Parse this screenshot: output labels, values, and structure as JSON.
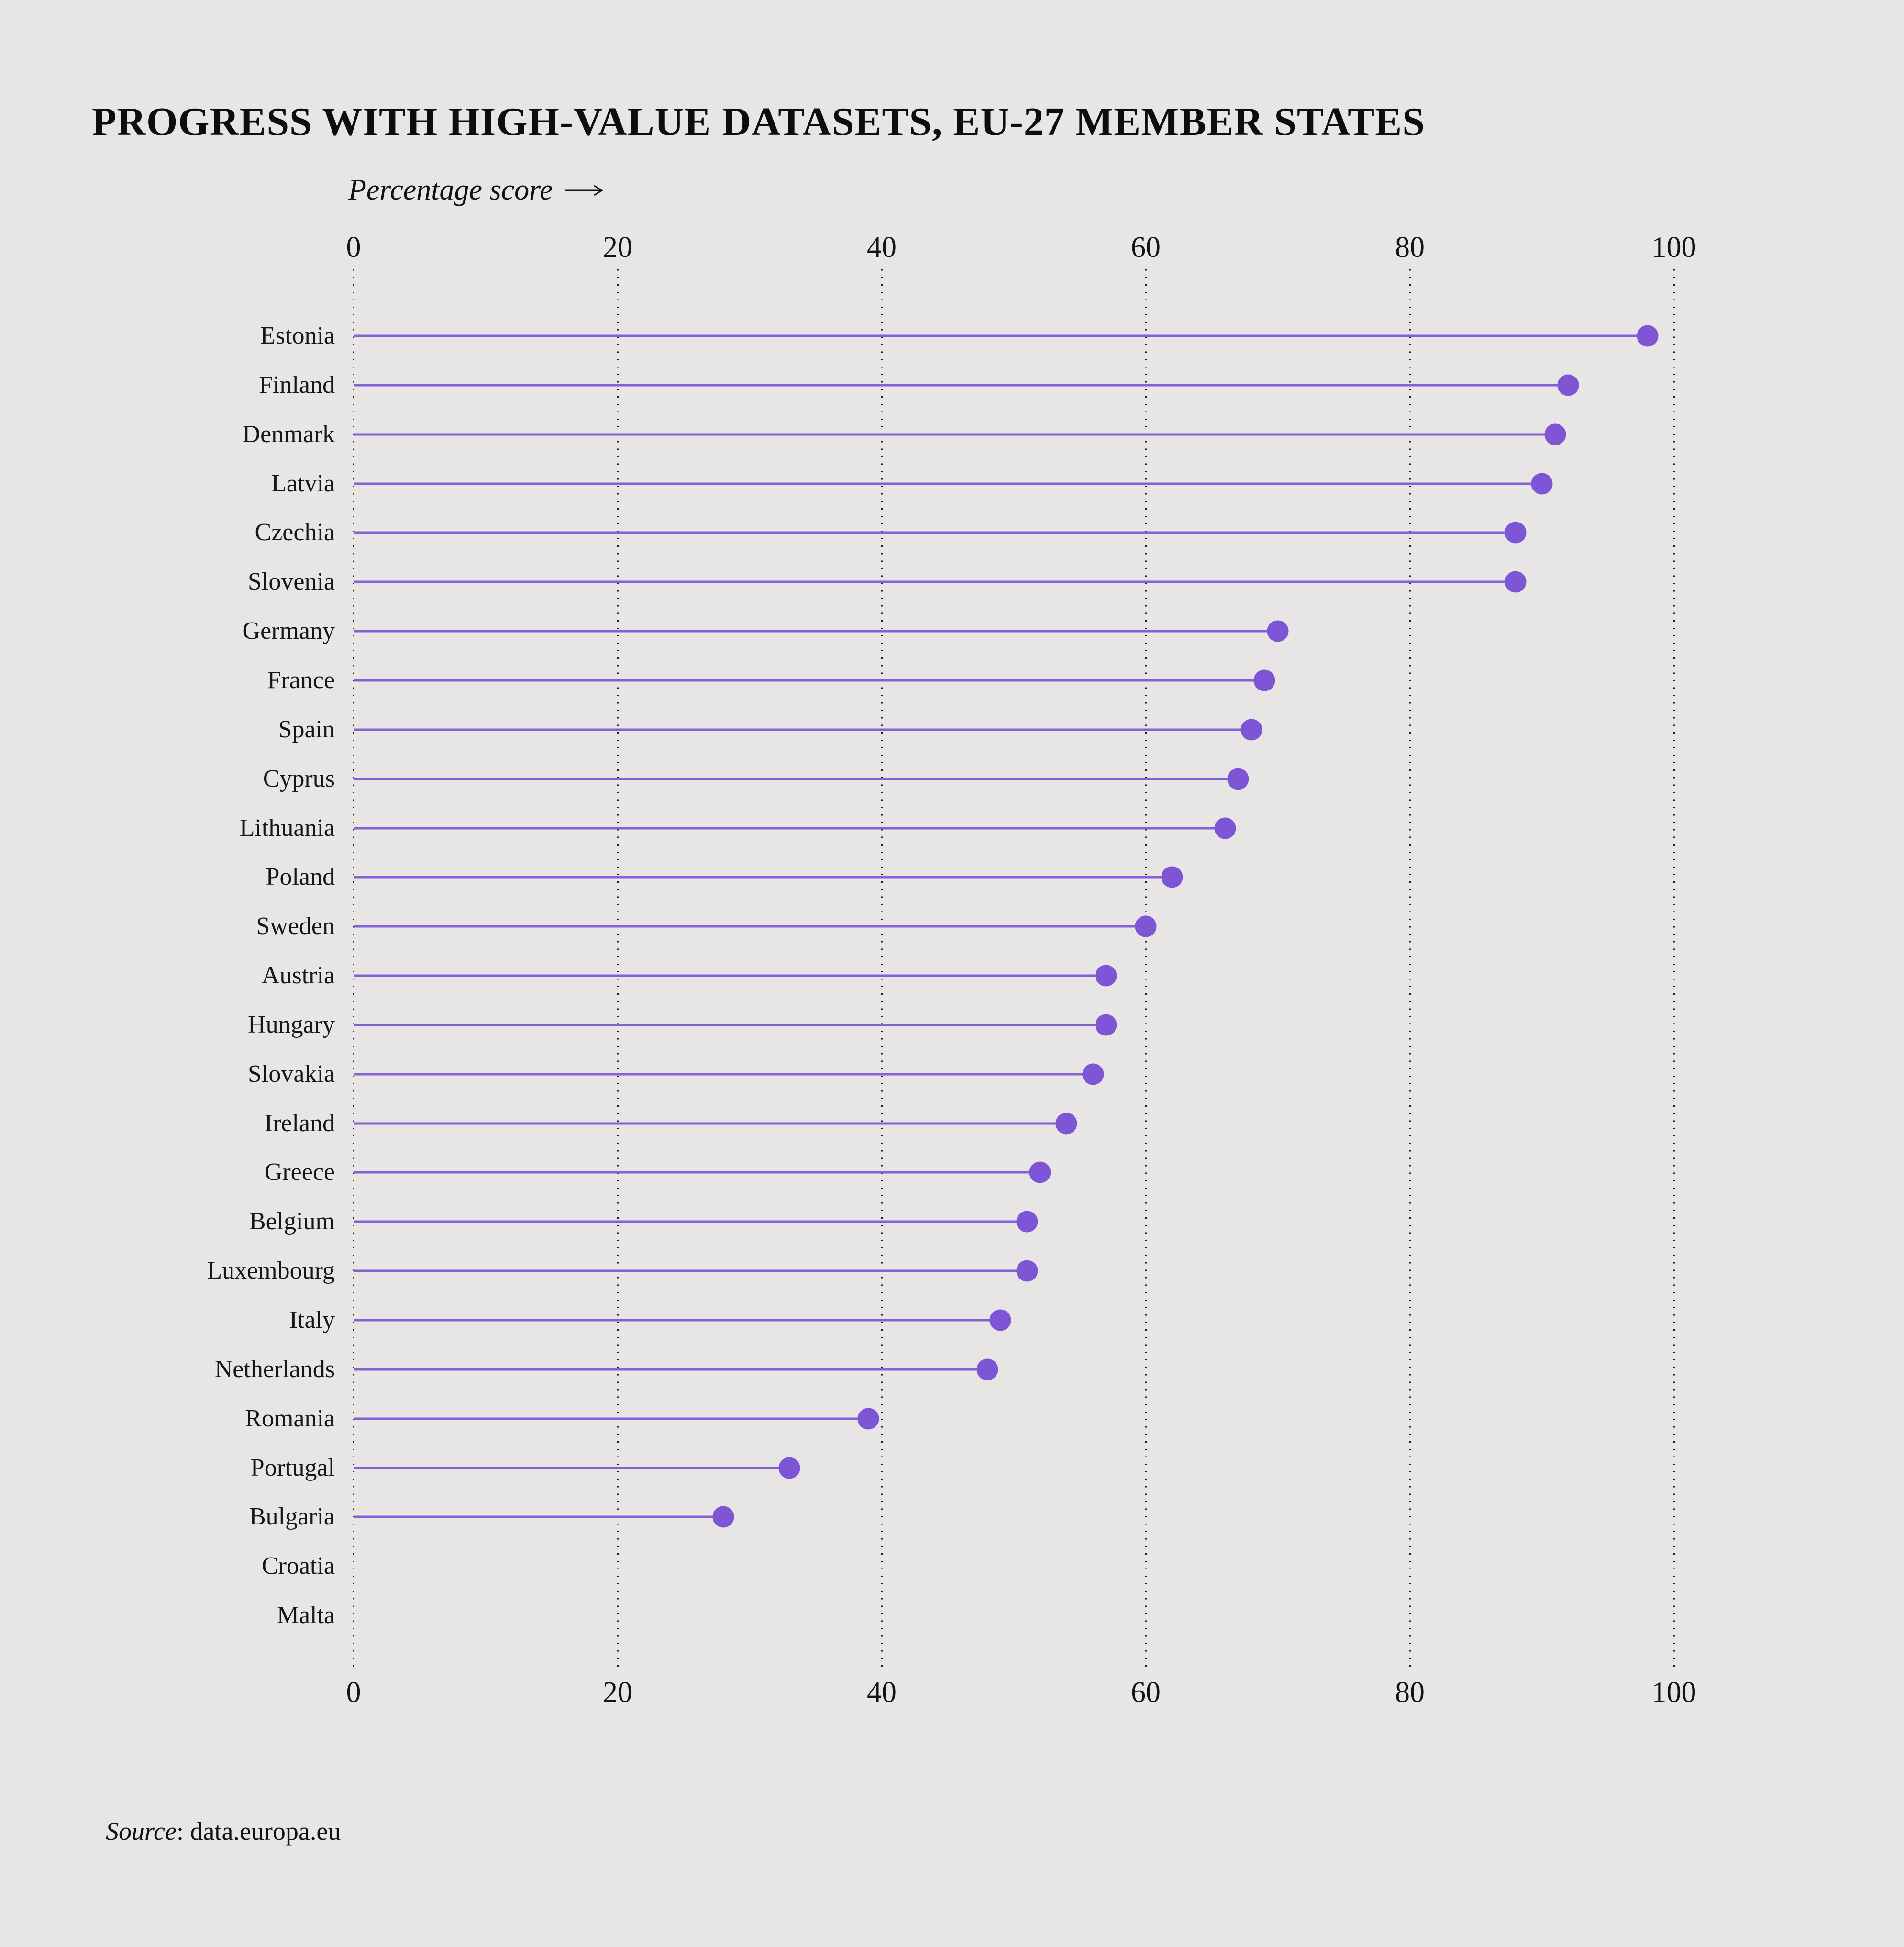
{
  "title": "PROGRESS WITH HIGH-VALUE DATASETS, EU-27 MEMBER STATES",
  "axis_label": "Percentage score",
  "source": {
    "label": "Source",
    "separator": ": ",
    "value": "data.europa.eu"
  },
  "colors": {
    "background": "#e7e6e5",
    "dot": "#7d55d5",
    "stem": "#8460d6",
    "gridline": "#1f1f1f",
    "text": "#141414"
  },
  "chart_data": {
    "type": "scatter",
    "variant": "lollipop-horizontal",
    "title": "PROGRESS WITH HIGH-VALUE DATASETS, EU-27 MEMBER STATES",
    "xlabel": "Percentage score",
    "ylabel": "",
    "xlim": [
      0,
      100
    ],
    "xticks": [
      0,
      20,
      40,
      60,
      80,
      100
    ],
    "grid": "vertical-dotted",
    "legend": "none",
    "categories": [
      "Estonia",
      "Finland",
      "Denmark",
      "Latvia",
      "Czechia",
      "Slovenia",
      "Germany",
      "France",
      "Spain",
      "Cyprus",
      "Lithuania",
      "Poland",
      "Sweden",
      "Austria",
      "Hungary",
      "Slovakia",
      "Ireland",
      "Greece",
      "Belgium",
      "Luxembourg",
      "Italy",
      "Netherlands",
      "Romania",
      "Portugal",
      "Bulgaria",
      "Croatia",
      "Malta"
    ],
    "values": [
      98,
      92,
      91,
      90,
      88,
      88,
      70,
      69,
      68,
      67,
      66,
      62,
      60,
      57,
      57,
      56,
      54,
      52,
      51,
      51,
      49,
      48,
      39,
      33,
      28,
      null,
      null
    ]
  }
}
